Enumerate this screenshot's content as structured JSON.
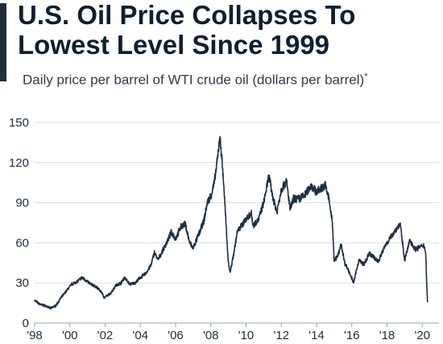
{
  "title": "U.S. Oil Price Collapses To Lowest Level Since 1999",
  "subtitle": "Daily price per barrel of WTI crude oil (dollars per barrel)",
  "subtitle_footnote_mark": "*",
  "colors": {
    "line": "#1f3044",
    "grid": "#d9dde2",
    "text": "#1f2d3d",
    "accent": "#1f2d3d"
  },
  "chart_data": {
    "type": "line",
    "title": "U.S. Oil Price Collapses To Lowest Level Since 1999",
    "subtitle": "Daily price per barrel of WTI crude oil (dollars per barrel)*",
    "xlabel": "",
    "ylabel": "",
    "xlim": [
      1998.0,
      2020.4
    ],
    "ylim": [
      0,
      150
    ],
    "grid": true,
    "legend": "none",
    "x_tick_values": [
      1998,
      2000,
      2002,
      2004,
      2006,
      2008,
      2010,
      2012,
      2014,
      2016,
      2018,
      2020
    ],
    "x_tick_labels": [
      "'98",
      "'00",
      "'02",
      "'04",
      "'06",
      "'08",
      "'10",
      "'12",
      "'14",
      "'16",
      "'18",
      "'20"
    ],
    "y_ticks": [
      0,
      30,
      60,
      90,
      120,
      150
    ],
    "series": [
      {
        "x": [
          1998.0,
          1998.3,
          1998.6,
          1998.9,
          1999.2,
          1999.5,
          1999.8,
          2000.1,
          2000.4,
          2000.7,
          2000.9,
          2001.2,
          2001.5,
          2001.8,
          2001.95,
          2002.3,
          2002.6,
          2002.9,
          2003.1,
          2003.4,
          2003.7,
          2004.0,
          2004.3,
          2004.6,
          2004.8,
          2005.0,
          2005.3,
          2005.6,
          2005.75,
          2006.0,
          2006.3,
          2006.55,
          2006.8,
          2007.0,
          2007.3,
          2007.6,
          2007.8,
          2008.0,
          2008.2,
          2008.4,
          2008.5,
          2008.6,
          2008.75,
          2008.9,
          2009.0,
          2009.1,
          2009.3,
          2009.5,
          2009.8,
          2010.0,
          2010.3,
          2010.4,
          2010.7,
          2011.0,
          2011.3,
          2011.5,
          2011.75,
          2012.0,
          2012.3,
          2012.5,
          2012.7,
          2013.0,
          2013.3,
          2013.7,
          2014.0,
          2014.5,
          2014.7,
          2014.9,
          2015.0,
          2015.2,
          2015.4,
          2015.6,
          2015.9,
          2016.1,
          2016.4,
          2016.7,
          2017.0,
          2017.5,
          2017.9,
          2018.2,
          2018.5,
          2018.75,
          2019.0,
          2019.3,
          2019.6,
          2019.9,
          2020.1,
          2020.2,
          2020.25,
          2020.3
        ],
        "y": [
          17,
          14,
          13,
          11,
          13,
          19,
          24,
          29,
          31,
          34,
          32,
          29,
          27,
          23,
          19,
          22,
          28,
          30,
          34,
          29,
          30,
          34,
          37,
          43,
          53,
          47,
          55,
          63,
          68,
          63,
          72,
          74,
          60,
          56,
          66,
          76,
          90,
          95,
          105,
          125,
          140,
          128,
          100,
          65,
          45,
          38,
          52,
          68,
          74,
          78,
          82,
          73,
          77,
          90,
          110,
          95,
          83,
          100,
          106,
          85,
          93,
          93,
          95,
          103,
          98,
          103,
          93,
          75,
          47,
          50,
          59,
          45,
          37,
          30,
          47,
          44,
          52,
          46,
          58,
          64,
          70,
          74,
          47,
          62,
          55,
          57,
          58,
          52,
          30,
          16
        ]
      }
    ]
  }
}
